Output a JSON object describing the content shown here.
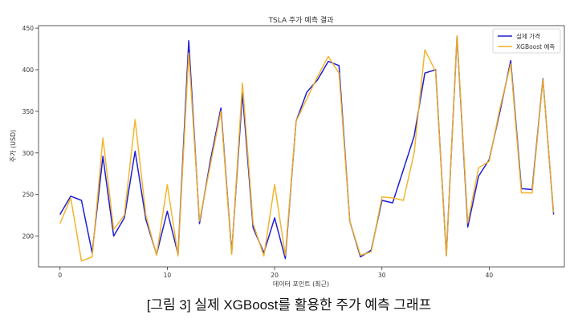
{
  "chart_data": {
    "type": "line",
    "title": "TSLA 주가 예측 결과",
    "xlabel": "데이터 포인트 (최근)",
    "ylabel": "주가 (USD)",
    "xlim": [
      -2,
      47
    ],
    "ylim": [
      163,
      453
    ],
    "x_ticks": [
      0,
      10,
      20,
      30,
      40
    ],
    "y_ticks": [
      200,
      250,
      300,
      350,
      400,
      450
    ],
    "grid": false,
    "legend_position": "top-right",
    "series": [
      {
        "name": "실제 가격",
        "color": "#1f1fd6",
        "values": [
          226,
          248,
          243,
          180,
          296,
          200,
          222,
          302,
          220,
          178,
          230,
          178,
          435,
          215,
          290,
          354,
          180,
          372,
          210,
          180,
          222,
          173,
          338,
          373,
          388,
          410,
          405,
          218,
          175,
          183,
          243,
          240,
          280,
          320,
          396,
          400,
          177,
          440,
          211,
          272,
          292,
          350,
          411,
          257,
          256,
          389,
          226
        ]
      },
      {
        "name": "XGBoost 예측",
        "color": "#f2b124",
        "values": [
          215,
          246,
          170,
          175,
          318,
          208,
          225,
          340,
          225,
          177,
          262,
          176,
          420,
          218,
          285,
          350,
          178,
          384,
          215,
          176,
          262,
          177,
          338,
          365,
          392,
          416,
          396,
          218,
          177,
          181,
          247,
          246,
          243,
          300,
          424,
          398,
          176,
          441,
          216,
          282,
          290,
          354,
          407,
          252,
          252,
          388,
          228
        ]
      }
    ]
  },
  "caption": "[그림 3] 실제 XGBoost를 활용한 주가 예측 그래프"
}
